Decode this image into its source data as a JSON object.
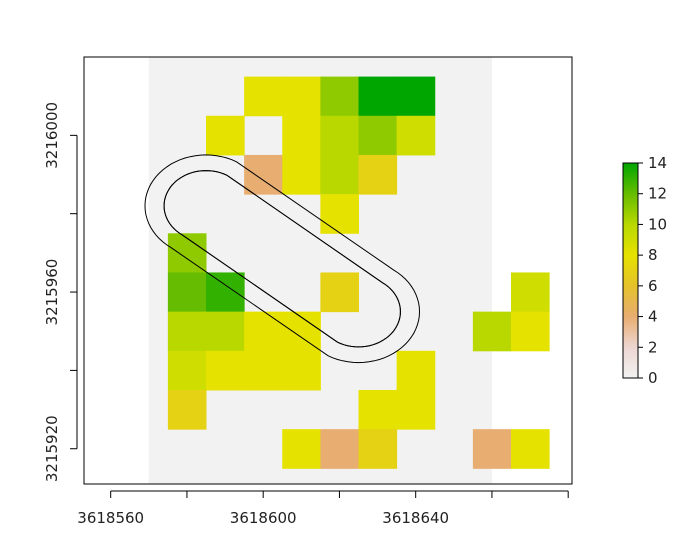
{
  "chart_data": {
    "type": "heatmap",
    "x_ticks": [
      3618560,
      3618600,
      3618640
    ],
    "y_ticks": [
      3215920,
      3215960,
      3216000
    ],
    "xlim": [
      3618553,
      3618681
    ],
    "ylim": [
      3215911,
      3216020
    ],
    "raster_extent": {
      "xmin": 3618570,
      "xmax": 3618660,
      "ymin": 3215911,
      "ymax": 3216020
    },
    "cell_size": 10,
    "na_color": "#f2f2f2",
    "cells": [
      {
        "x": 3618600,
        "y": 3216010,
        "value": 8
      },
      {
        "x": 3618610,
        "y": 3216010,
        "value": 8
      },
      {
        "x": 3618620,
        "y": 3216010,
        "value": 11
      },
      {
        "x": 3618630,
        "y": 3216010,
        "value": 14
      },
      {
        "x": 3618640,
        "y": 3216010,
        "value": 14
      },
      {
        "x": 3618590,
        "y": 3216000,
        "value": 8
      },
      {
        "x": 3618610,
        "y": 3216000,
        "value": 8
      },
      {
        "x": 3618620,
        "y": 3216000,
        "value": 10
      },
      {
        "x": 3618630,
        "y": 3216000,
        "value": 11
      },
      {
        "x": 3618640,
        "y": 3216000,
        "value": 9
      },
      {
        "x": 3618600,
        "y": 3215990,
        "value": 4
      },
      {
        "x": 3618610,
        "y": 3215990,
        "value": 8
      },
      {
        "x": 3618620,
        "y": 3215990,
        "value": 10
      },
      {
        "x": 3618630,
        "y": 3215990,
        "value": 7
      },
      {
        "x": 3618620,
        "y": 3215980,
        "value": 8
      },
      {
        "x": 3618580,
        "y": 3215970,
        "value": 11
      },
      {
        "x": 3618580,
        "y": 3215960,
        "value": 12
      },
      {
        "x": 3618590,
        "y": 3215960,
        "value": 13
      },
      {
        "x": 3618620,
        "y": 3215960,
        "value": 7
      },
      {
        "x": 3618670,
        "y": 3215960,
        "value": 9
      },
      {
        "x": 3618580,
        "y": 3215950,
        "value": 10
      },
      {
        "x": 3618590,
        "y": 3215950,
        "value": 10
      },
      {
        "x": 3618600,
        "y": 3215950,
        "value": 8
      },
      {
        "x": 3618610,
        "y": 3215950,
        "value": 8
      },
      {
        "x": 3618660,
        "y": 3215950,
        "value": 10
      },
      {
        "x": 3618670,
        "y": 3215950,
        "value": 8
      },
      {
        "x": 3618580,
        "y": 3215940,
        "value": 9
      },
      {
        "x": 3618590,
        "y": 3215940,
        "value": 8
      },
      {
        "x": 3618600,
        "y": 3215940,
        "value": 8
      },
      {
        "x": 3618610,
        "y": 3215940,
        "value": 8
      },
      {
        "x": 3618640,
        "y": 3215940,
        "value": 8
      },
      {
        "x": 3618580,
        "y": 3215930,
        "value": 7
      },
      {
        "x": 3618630,
        "y": 3215930,
        "value": 8
      },
      {
        "x": 3618640,
        "y": 3215930,
        "value": 8
      },
      {
        "x": 3618610,
        "y": 3215920,
        "value": 8
      },
      {
        "x": 3618620,
        "y": 3215920,
        "value": 4
      },
      {
        "x": 3618630,
        "y": 3215920,
        "value": 7
      },
      {
        "x": 3618660,
        "y": 3215920,
        "value": 4
      },
      {
        "x": 3618670,
        "y": 3215920,
        "value": 8
      }
    ],
    "contours": [
      {
        "x1": 3618585,
        "y1": 3215982,
        "x2": 3618625,
        "y2": 3215955,
        "rx": 16,
        "ry": 13
      },
      {
        "x1": 3618585,
        "y1": 3215982,
        "x2": 3618625,
        "y2": 3215955,
        "rx": 11,
        "ry": 9
      },
      {
        "x1": 3618585,
        "y1": 3215982,
        "x2": 3618625,
        "y2": 3215955,
        "rx": 11,
        "ry": 9
      }
    ],
    "legend": {
      "ticks": [
        0,
        2,
        4,
        6,
        8,
        10,
        12,
        14
      ],
      "range": [
        0,
        14
      ],
      "stops": [
        {
          "value": 0,
          "color": "#f2f2f2"
        },
        {
          "value": 2,
          "color": "#edd6d1"
        },
        {
          "value": 4,
          "color": "#e8ad70"
        },
        {
          "value": 6,
          "color": "#e5c22a"
        },
        {
          "value": 8,
          "color": "#e6e200"
        },
        {
          "value": 10,
          "color": "#b8d800"
        },
        {
          "value": 12,
          "color": "#66bc00"
        },
        {
          "value": 14,
          "color": "#00a600"
        }
      ]
    },
    "grid": false,
    "legend_position": "right"
  }
}
